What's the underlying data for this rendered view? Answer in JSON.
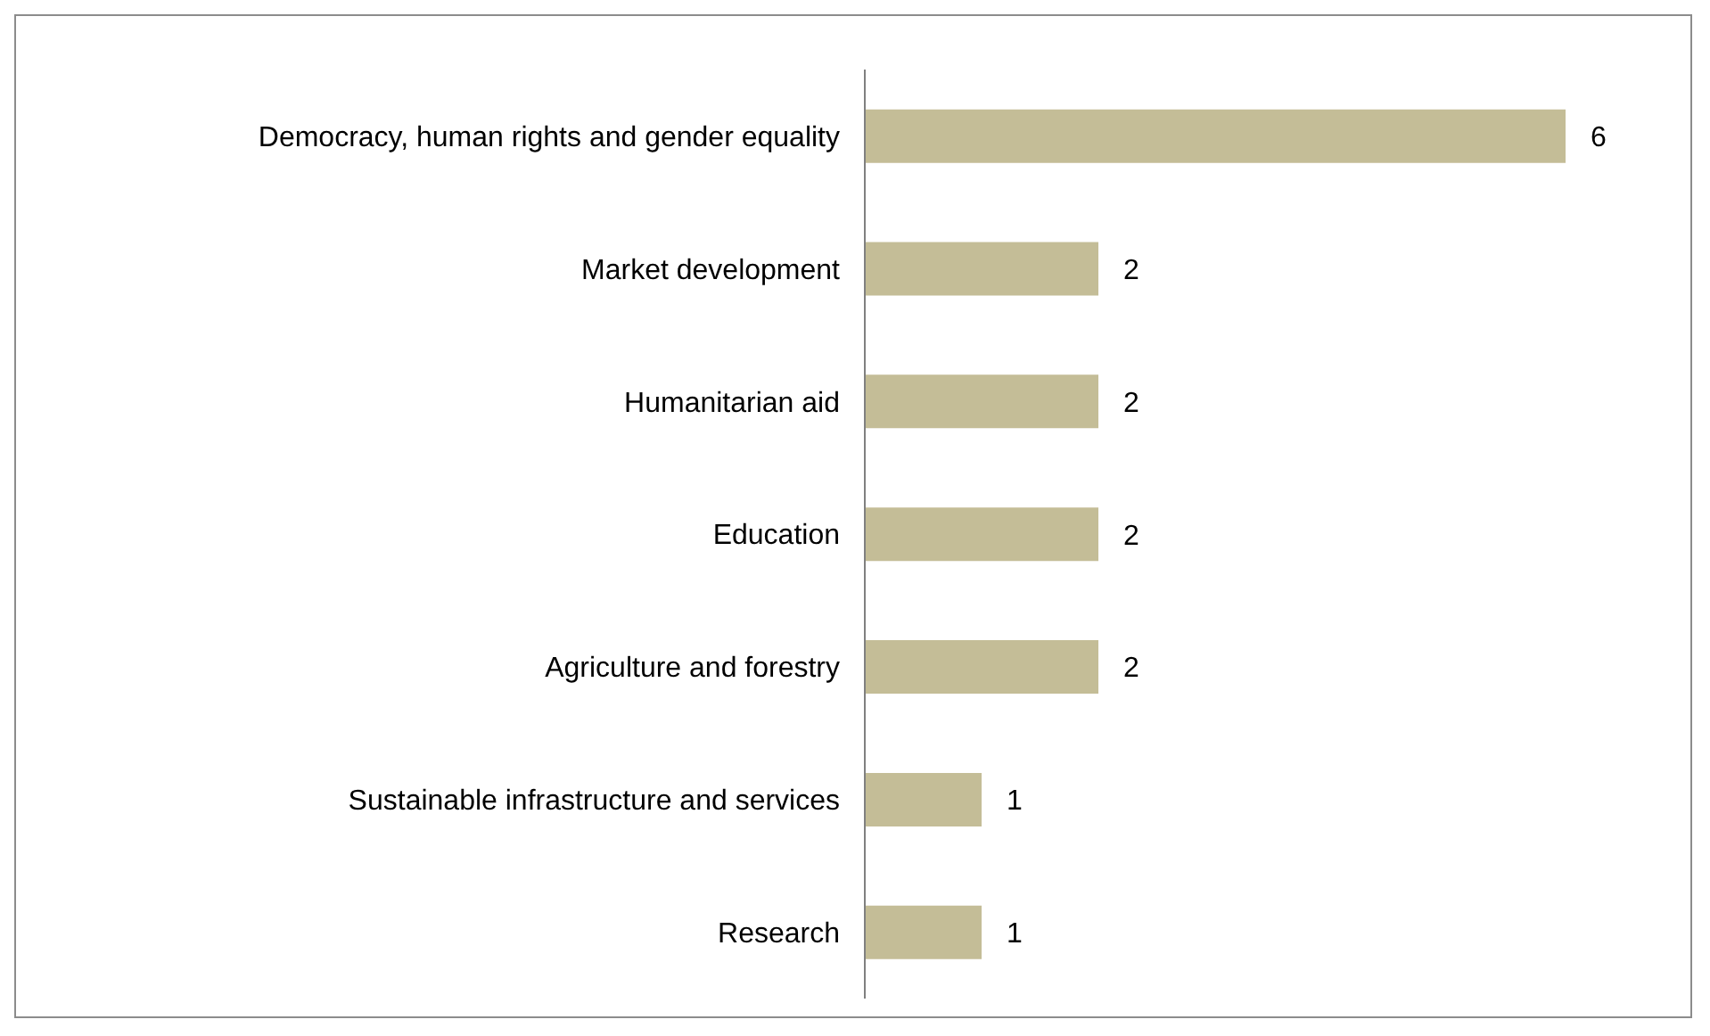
{
  "chart_data": {
    "type": "bar",
    "orientation": "horizontal",
    "categories": [
      "Democracy, human rights and gender equality",
      "Market development",
      "Humanitarian aid",
      "Education",
      "Agriculture and forestry",
      "Sustainable infrastructure and services",
      "Research"
    ],
    "values": [
      6,
      2,
      2,
      2,
      2,
      1,
      1
    ],
    "color": "#c4bd97",
    "data_labels": true,
    "grid": false,
    "legend": false
  }
}
